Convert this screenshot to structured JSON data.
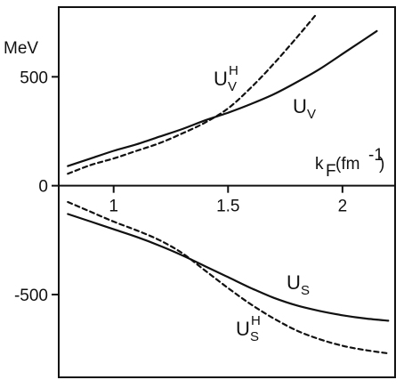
{
  "chart_data": {
    "type": "line",
    "title": "",
    "ylabel": "MeV",
    "xlabel": "kF(fm-1)",
    "xlim": [
      0.76,
      2.23
    ],
    "ylim": [
      -880,
      820
    ],
    "xticks": [
      1,
      1.5,
      2
    ],
    "xtick_labels": [
      "1",
      "1.5",
      "2"
    ],
    "yticks": [
      500,
      0,
      -500
    ],
    "ytick_labels": [
      "500",
      "0",
      "-500"
    ],
    "grid": false,
    "series": [
      {
        "name": "U_V^H",
        "label_main": "U",
        "label_sub": "V",
        "label_sup": "H",
        "style": "dashed",
        "x": [
          0.8,
          0.9,
          1.0,
          1.1,
          1.2,
          1.3,
          1.4,
          1.5,
          1.6,
          1.7,
          1.8,
          1.88
        ],
        "y": [
          55,
          95,
          125,
          160,
          195,
          240,
          290,
          355,
          450,
          560,
          680,
          780
        ]
      },
      {
        "name": "U_V",
        "label_main": "U",
        "label_sub": "V",
        "label_sup": "",
        "style": "solid",
        "x": [
          0.8,
          0.9,
          1.0,
          1.1,
          1.2,
          1.3,
          1.4,
          1.5,
          1.6,
          1.7,
          1.8,
          1.9,
          2.0,
          2.1,
          2.15
        ],
        "y": [
          90,
          125,
          160,
          190,
          225,
          260,
          300,
          335,
          375,
          420,
          475,
          535,
          605,
          675,
          710
        ]
      },
      {
        "name": "U_S",
        "label_main": "U",
        "label_sub": "S",
        "label_sup": "",
        "style": "solid",
        "x": [
          0.8,
          0.9,
          1.0,
          1.1,
          1.2,
          1.3,
          1.4,
          1.5,
          1.6,
          1.7,
          1.8,
          1.9,
          2.0,
          2.1,
          2.2
        ],
        "y": [
          -130,
          -165,
          -200,
          -235,
          -275,
          -320,
          -370,
          -420,
          -470,
          -515,
          -550,
          -575,
          -595,
          -610,
          -620
        ]
      },
      {
        "name": "U_S^H",
        "label_main": "U",
        "label_sub": "S",
        "label_sup": "H",
        "style": "dashed",
        "x": [
          0.8,
          0.9,
          1.0,
          1.1,
          1.2,
          1.3,
          1.4,
          1.5,
          1.6,
          1.7,
          1.8,
          1.9,
          2.0,
          2.1,
          2.2
        ],
        "y": [
          -75,
          -120,
          -165,
          -205,
          -250,
          -310,
          -390,
          -470,
          -545,
          -610,
          -665,
          -705,
          -735,
          -755,
          -770
        ]
      }
    ]
  }
}
